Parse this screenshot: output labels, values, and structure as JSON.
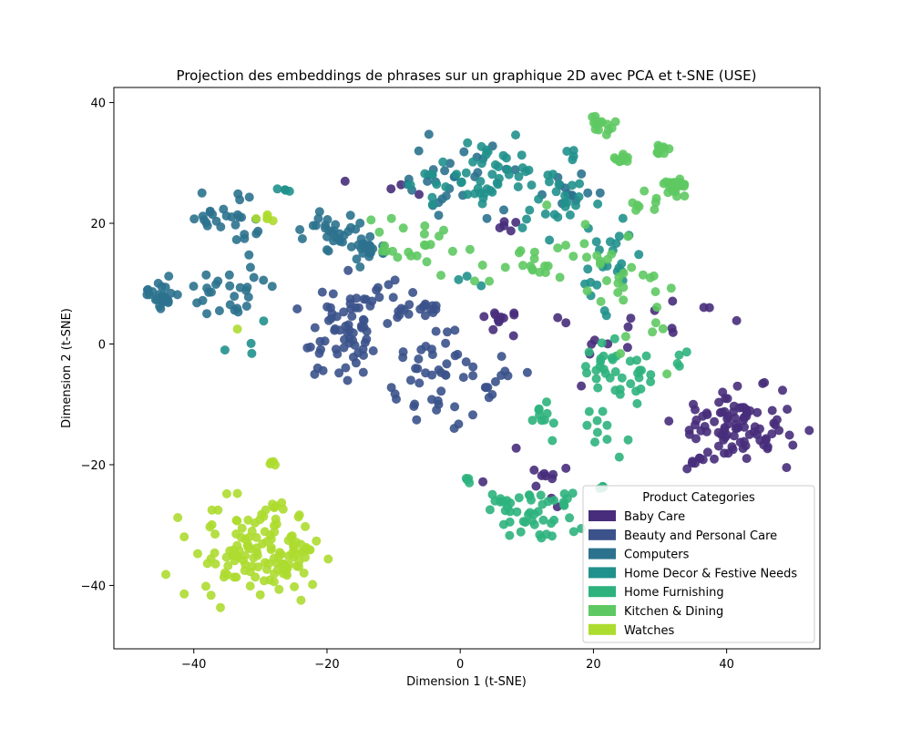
{
  "chart_data": {
    "type": "scatter",
    "title": "Projection des embeddings de phrases sur un graphique 2D avec PCA et t-SNE (USE)",
    "xlabel": "Dimension 1 (t-SNE)",
    "ylabel": "Dimension 2 (t-SNE)",
    "xlim": [
      -52,
      54
    ],
    "ylim": [
      -50.5,
      42.5
    ],
    "xticks": [
      -40,
      -20,
      0,
      20,
      40
    ],
    "yticks": [
      -40,
      -20,
      0,
      20,
      40
    ],
    "xtick_labels": [
      "−40",
      "−20",
      "0",
      "20",
      "40"
    ],
    "ytick_labels": [
      "−40",
      "−20",
      "0",
      "20",
      "40"
    ],
    "grid": false,
    "legend": {
      "title": "Product Categories",
      "placement": "lower-right"
    },
    "series": [
      {
        "name": "Baby Care",
        "color": "#472d7b",
        "clusters": [
          {
            "cx": 42,
            "cy": -13,
            "sx": 4,
            "sy": 3,
            "n": 90
          },
          {
            "cx": 36,
            "cy": -19.5,
            "sx": 1.2,
            "sy": 0.6,
            "n": 7
          },
          {
            "cx": 6,
            "cy": 4.5,
            "sx": 0.9,
            "sy": 0.7,
            "n": 10
          },
          {
            "cx": 12,
            "cy": -23,
            "sx": 3,
            "sy": 2,
            "n": 12
          },
          {
            "cx": 22,
            "cy": 2,
            "sx": 5,
            "sy": 4,
            "n": 14
          },
          {
            "cx": 8,
            "cy": 19,
            "sx": 3,
            "sy": 1.5,
            "n": 5
          },
          {
            "cx": -12,
            "cy": 26,
            "sx": 3,
            "sy": 0.8,
            "n": 4
          },
          {
            "cx": 32,
            "cy": 4,
            "sx": 4,
            "sy": 2,
            "n": 5
          }
        ]
      },
      {
        "name": "Beauty and Personal Care",
        "color": "#3b528b",
        "clusters": [
          {
            "cx": -17,
            "cy": 2,
            "sx": 3.5,
            "sy": 3.5,
            "n": 70
          },
          {
            "cx": -4,
            "cy": -6,
            "sx": 4,
            "sy": 4,
            "n": 45
          },
          {
            "cx": -5,
            "cy": 6,
            "sx": 1.2,
            "sy": 1.2,
            "n": 12
          },
          {
            "cx": 6,
            "cy": -6,
            "sx": 2.5,
            "sy": 2,
            "n": 10
          },
          {
            "cx": -10,
            "cy": 8,
            "sx": 2,
            "sy": 2,
            "n": 8
          }
        ]
      },
      {
        "name": "Computers",
        "color": "#2c728e",
        "clusters": [
          {
            "cx": -45,
            "cy": 8.5,
            "sx": 1.3,
            "sy": 1.3,
            "n": 25
          },
          {
            "cx": -35,
            "cy": 20,
            "sx": 3,
            "sy": 3,
            "n": 30
          },
          {
            "cx": -35,
            "cy": 8,
            "sx": 3,
            "sy": 2.5,
            "n": 25
          },
          {
            "cx": -19,
            "cy": 19,
            "sx": 2.5,
            "sy": 2,
            "n": 30
          },
          {
            "cx": -13.5,
            "cy": 16,
            "sx": 1.2,
            "sy": 1.2,
            "n": 25
          },
          {
            "cx": 0,
            "cy": 27,
            "sx": 4,
            "sy": 3,
            "n": 30
          },
          {
            "cx": 17,
            "cy": 25,
            "sx": 3,
            "sy": 1.5,
            "n": 12
          }
        ]
      },
      {
        "name": "Home Decor & Festive Needs",
        "color": "#21918c",
        "clusters": [
          {
            "cx": 4,
            "cy": 28,
            "sx": 5,
            "sy": 3,
            "n": 55
          },
          {
            "cx": 15,
            "cy": 22,
            "sx": 3,
            "sy": 3,
            "n": 20
          },
          {
            "cx": 22,
            "cy": 12,
            "sx": 3,
            "sy": 4,
            "n": 25
          },
          {
            "cx": -31,
            "cy": 0,
            "sx": 2.5,
            "sy": 1.5,
            "n": 4
          },
          {
            "cx": -26.5,
            "cy": 25.7,
            "sx": 0.5,
            "sy": 0.5,
            "n": 4
          },
          {
            "cx": 1,
            "cy": 10.5,
            "sx": 1,
            "sy": 0.5,
            "n": 3
          }
        ]
      },
      {
        "name": "Home Furnishing",
        "color": "#2db27d",
        "clusters": [
          {
            "cx": 12,
            "cy": -28,
            "sx": 2.8,
            "sy": 2.2,
            "n": 40
          },
          {
            "cx": 24,
            "cy": -4,
            "sx": 4,
            "sy": 2.5,
            "n": 40
          },
          {
            "cx": 6,
            "cy": -27,
            "sx": 1.5,
            "sy": 1,
            "n": 8
          },
          {
            "cx": 12.5,
            "cy": -12,
            "sx": 1.2,
            "sy": 1.5,
            "n": 10
          },
          {
            "cx": 21,
            "cy": -14,
            "sx": 2,
            "sy": 2,
            "n": 10
          },
          {
            "cx": 1.2,
            "cy": -22.5,
            "sx": 0.3,
            "sy": 0.3,
            "n": 4
          },
          {
            "cx": 21.2,
            "cy": -23.8,
            "sx": 0.2,
            "sy": 0.2,
            "n": 4
          }
        ]
      },
      {
        "name": "Kitchen & Dining",
        "color": "#5ec962",
        "clusters": [
          {
            "cx": 21,
            "cy": 36.5,
            "sx": 1.2,
            "sy": 1,
            "n": 14
          },
          {
            "cx": 24.5,
            "cy": 31,
            "sx": 0.5,
            "sy": 0.5,
            "n": 12
          },
          {
            "cx": 30,
            "cy": 32.5,
            "sx": 0.5,
            "sy": 0.5,
            "n": 12
          },
          {
            "cx": 32.5,
            "cy": 26,
            "sx": 0.9,
            "sy": 0.8,
            "n": 25
          },
          {
            "cx": 14,
            "cy": 13,
            "sx": 6,
            "sy": 3,
            "n": 35
          },
          {
            "cx": 27,
            "cy": 5,
            "sx": 3,
            "sy": 5,
            "n": 20
          },
          {
            "cx": -8,
            "cy": 17,
            "sx": 3,
            "sy": 2.5,
            "n": 20
          },
          {
            "cx": 26.5,
            "cy": 24.5,
            "sx": 2,
            "sy": 1.5,
            "n": 8
          }
        ]
      },
      {
        "name": "Watches",
        "color": "#addc30",
        "clusters": [
          {
            "cx": -31,
            "cy": -34,
            "sx": 4.5,
            "sy": 4.5,
            "n": 110
          },
          {
            "cx": -25.5,
            "cy": -36,
            "sx": 2.2,
            "sy": 4,
            "n": 30
          },
          {
            "cx": -28.5,
            "cy": -20,
            "sx": 0.4,
            "sy": 0.4,
            "n": 4
          },
          {
            "cx": -29.7,
            "cy": 21,
            "sx": 0.8,
            "sy": 1.2,
            "n": 5
          },
          {
            "cx": -33.5,
            "cy": 2.5,
            "sx": 0.2,
            "sy": 0.2,
            "n": 1
          }
        ]
      }
    ]
  }
}
